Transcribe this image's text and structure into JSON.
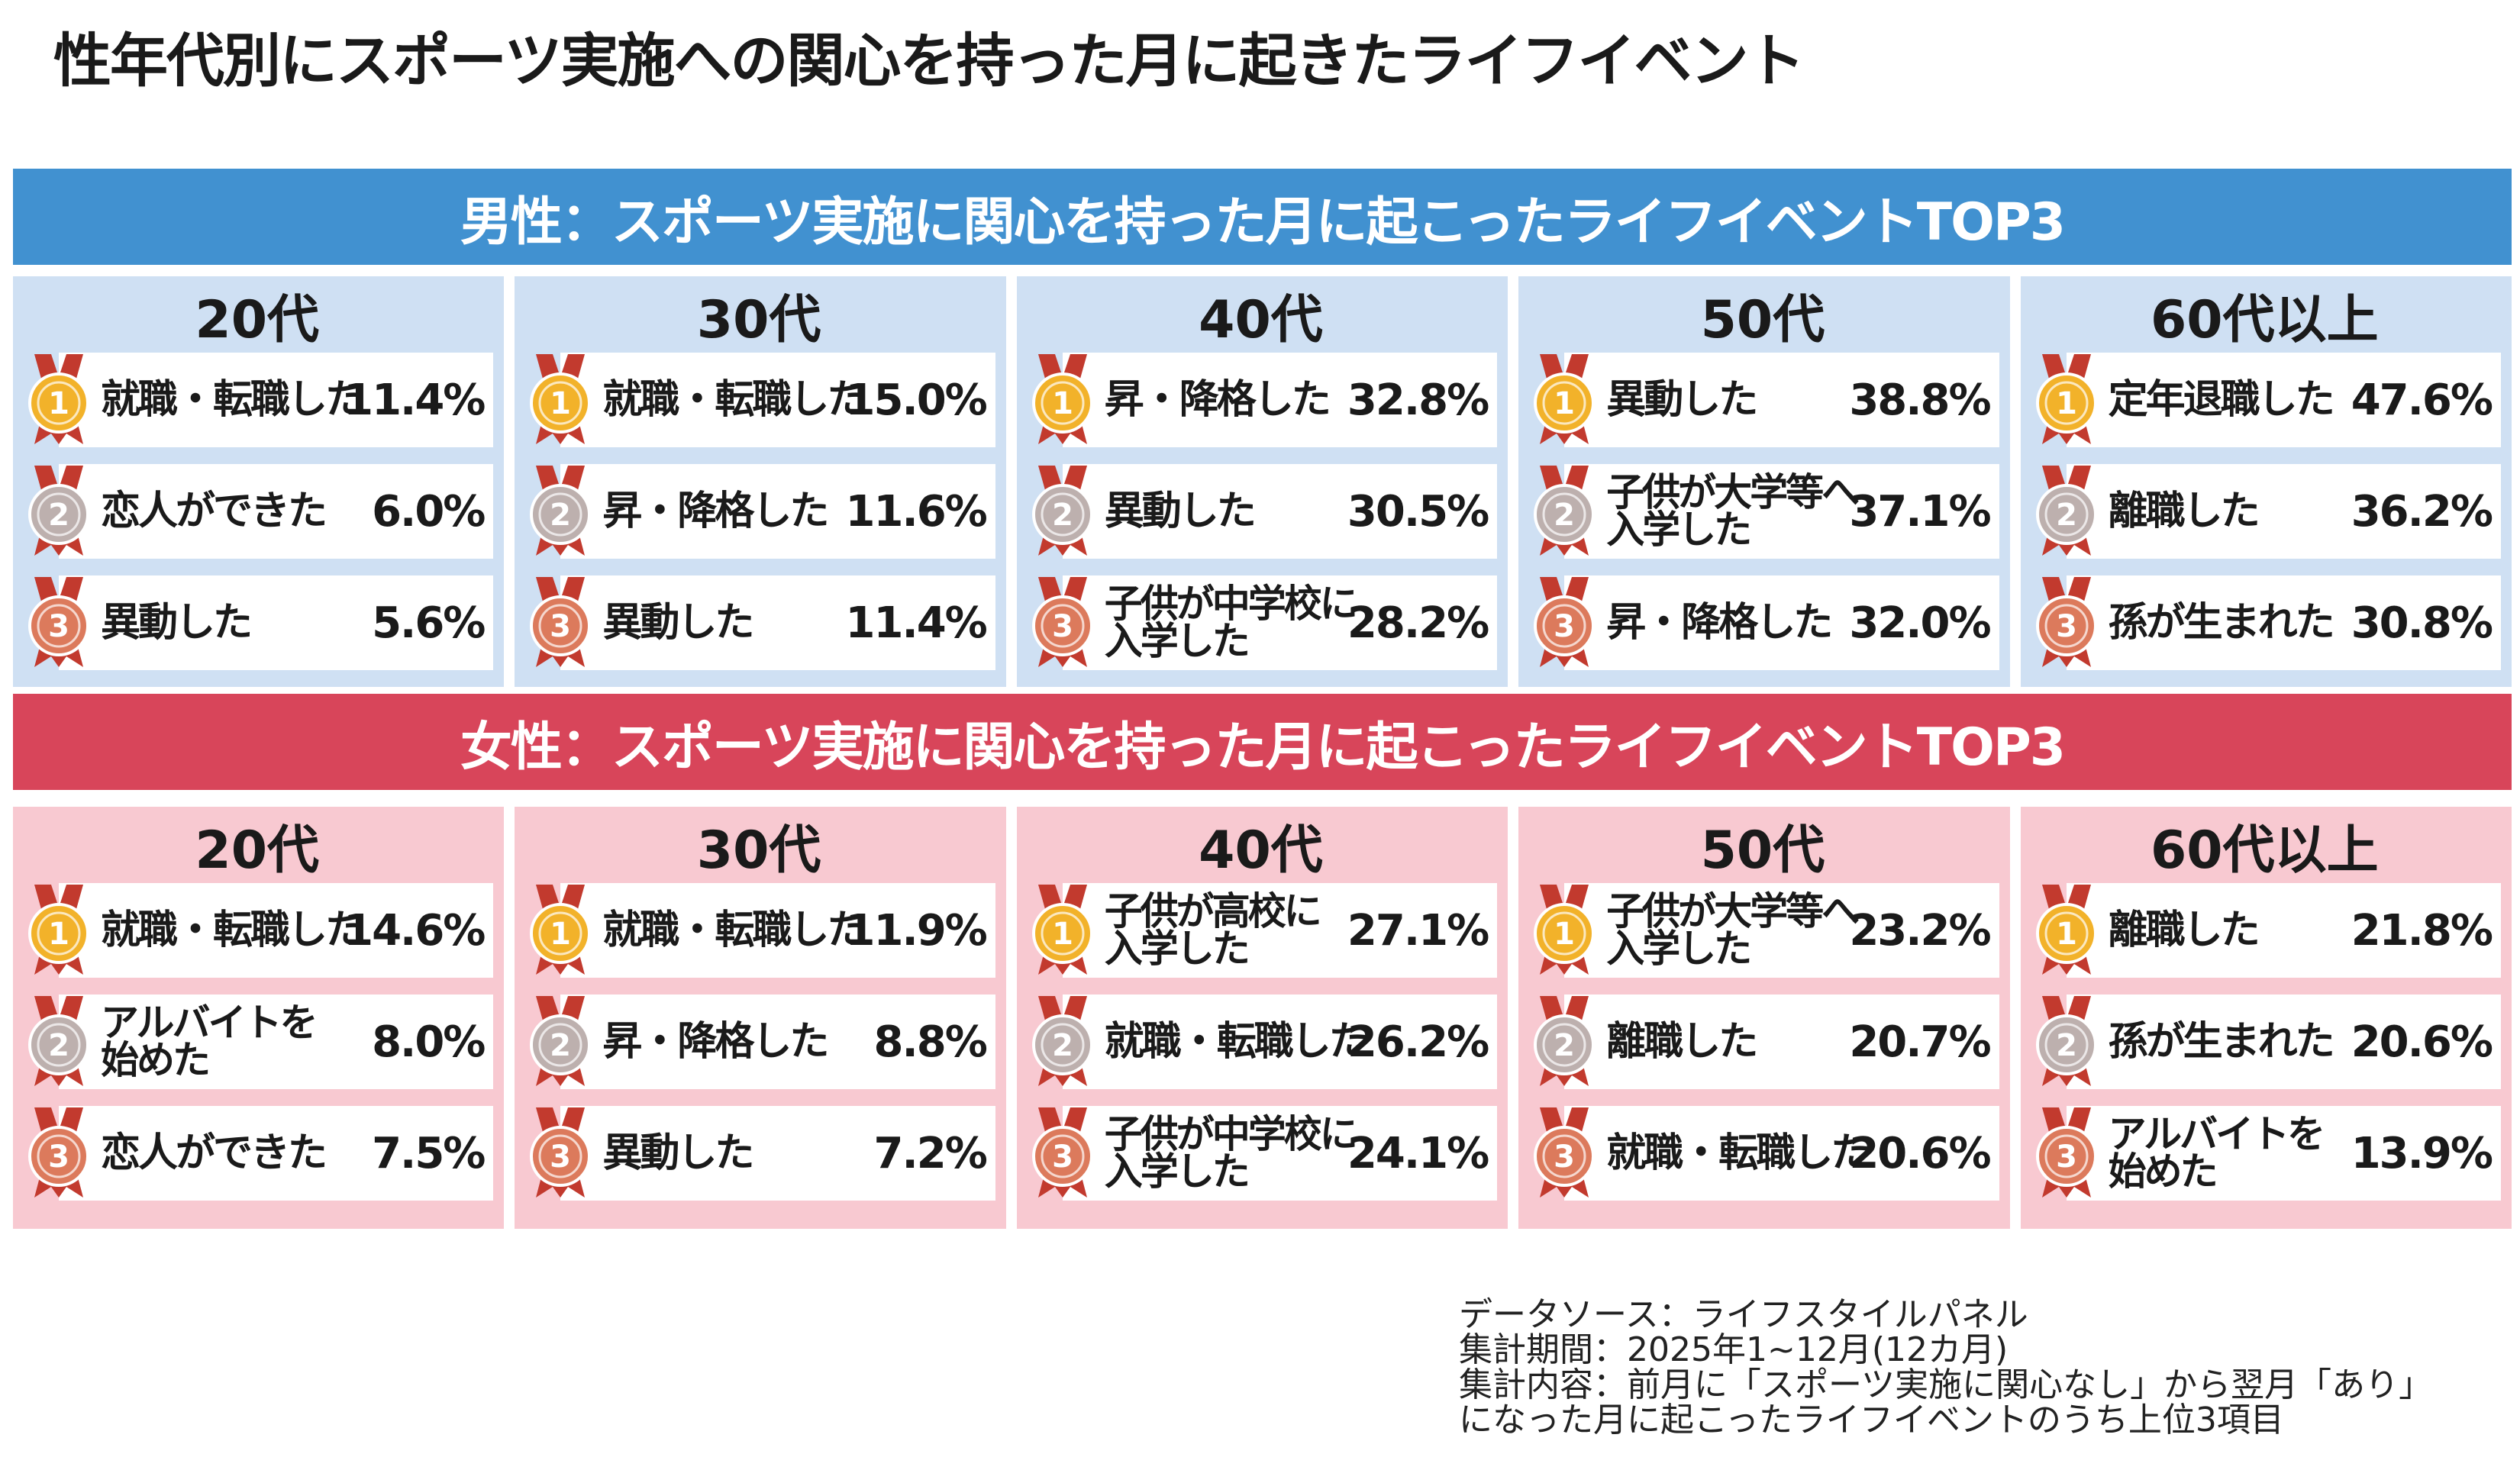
{
  "title": "性年代別にスポーツ実施への関心を持った月に起きたライフイベント",
  "sections": [
    {
      "heading": "男性：スポーツ実施に関心を持った月に起こったライフイベントTOP3",
      "groups": [
        {
          "age": "20代",
          "items": [
            {
              "rank": "1",
              "event": "就職・転職した",
              "value": "11.4%"
            },
            {
              "rank": "2",
              "event": "恋人ができた",
              "value": "6.0%"
            },
            {
              "rank": "3",
              "event": "異動した",
              "value": "5.6%"
            }
          ]
        },
        {
          "age": "30代",
          "items": [
            {
              "rank": "1",
              "event": "就職・転職した",
              "value": "15.0%"
            },
            {
              "rank": "2",
              "event": "昇・降格した",
              "value": "11.6%"
            },
            {
              "rank": "3",
              "event": "異動した",
              "value": "11.4%"
            }
          ]
        },
        {
          "age": "40代",
          "items": [
            {
              "rank": "1",
              "event": "昇・降格した",
              "value": "32.8%"
            },
            {
              "rank": "2",
              "event": "異動した",
              "value": "30.5%"
            },
            {
              "rank": "3",
              "event": "子供が中学校に\n入学した",
              "value": "28.2%"
            }
          ]
        },
        {
          "age": "50代",
          "items": [
            {
              "rank": "1",
              "event": "異動した",
              "value": "38.8%"
            },
            {
              "rank": "2",
              "event": "子供が大学等へ\n入学した",
              "value": "37.1%"
            },
            {
              "rank": "3",
              "event": "昇・降格した",
              "value": "32.0%"
            }
          ]
        },
        {
          "age": "60代以上",
          "items": [
            {
              "rank": "1",
              "event": "定年退職した",
              "value": "47.6%"
            },
            {
              "rank": "2",
              "event": "離職した",
              "value": "36.2%"
            },
            {
              "rank": "3",
              "event": "孫が生まれた",
              "value": "30.8%"
            }
          ]
        }
      ]
    },
    {
      "heading": "女性：スポーツ実施に関心を持った月に起こったライフイベントTOP3",
      "groups": [
        {
          "age": "20代",
          "items": [
            {
              "rank": "1",
              "event": "就職・転職した",
              "value": "14.6%"
            },
            {
              "rank": "2",
              "event": "アルバイトを\n始めた",
              "value": "8.0%"
            },
            {
              "rank": "3",
              "event": "恋人ができた",
              "value": "7.5%"
            }
          ]
        },
        {
          "age": "30代",
          "items": [
            {
              "rank": "1",
              "event": "就職・転職した",
              "value": "11.9%"
            },
            {
              "rank": "2",
              "event": "昇・降格した",
              "value": "8.8%"
            },
            {
              "rank": "3",
              "event": "異動した",
              "value": "7.2%"
            }
          ]
        },
        {
          "age": "40代",
          "items": [
            {
              "rank": "1",
              "event": "子供が高校に\n入学した",
              "value": "27.1%"
            },
            {
              "rank": "2",
              "event": "就職・転職した",
              "value": "26.2%"
            },
            {
              "rank": "3",
              "event": "子供が中学校に\n入学した",
              "value": "24.1%"
            }
          ]
        },
        {
          "age": "50代",
          "items": [
            {
              "rank": "1",
              "event": "子供が大学等へ\n入学した",
              "value": "23.2%"
            },
            {
              "rank": "2",
              "event": "離職した",
              "value": "20.7%"
            },
            {
              "rank": "3",
              "event": "就職・転職した",
              "value": "20.6%"
            }
          ]
        },
        {
          "age": "60代以上",
          "items": [
            {
              "rank": "1",
              "event": "離職した",
              "value": "21.8%"
            },
            {
              "rank": "2",
              "event": "孫が生まれた",
              "value": "20.6%"
            },
            {
              "rank": "3",
              "event": "アルバイトを\n始めた",
              "value": "13.9%"
            }
          ]
        }
      ]
    }
  ],
  "notes": [
    "データソース：ライフスタイルパネル",
    "集計期間：2025年1~12月(12カ月)",
    "集計内容：前月に「スポーツ実施に関心なし」から翌月「あり」",
    "になった月に起こったライフイベントのうち上位3項目"
  ]
}
